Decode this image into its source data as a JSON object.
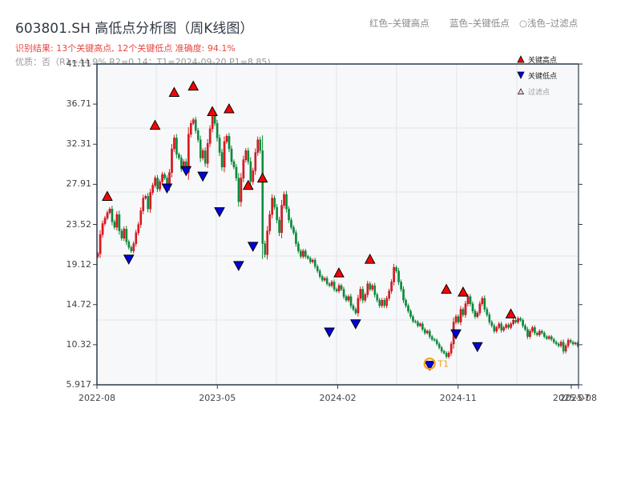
{
  "header": {
    "title": "603801.SH 高低点分析图（周K线图）",
    "result_line": "识别结果: 13个关键高点, 12个关键低点   准确度: 94.1%",
    "quality_line": "优质：否（R1=44.9%  R2=0.14；T1=2024-09-20 P1=8.85)"
  },
  "top_legend": {
    "red": "红色–关键高点",
    "blue": "蓝色–关键低点",
    "faded": "○浅色–过滤点"
  },
  "legend": {
    "high_label": "关键高点",
    "low_label": "关键低点",
    "filtered_label": "过滤点"
  },
  "colors": {
    "up": "#e31a1c",
    "down": "#0a8a3a",
    "high_marker": "#ff0000",
    "low_marker": "#0000e0",
    "t1_ring": "#f0a020",
    "plot_bg": "#f7f8fa",
    "grid": "#e2e4e8",
    "axis": "#2c3a4a"
  },
  "chart_data": {
    "type": "candlestick",
    "title": "603801.SH 高低点分析图（周K线图）",
    "xlabel": "",
    "ylabel": "",
    "ylim": [
      5.917,
      41.11
    ],
    "yticks": [
      "41.11",
      "36.71",
      "32.31",
      "27.91",
      "23.52",
      "19.12",
      "14.72",
      "10.32",
      "5.917"
    ],
    "xticks": [
      {
        "label": "2022-08",
        "pos": 0.0
      },
      {
        "label": "2023-05",
        "pos": 0.25
      },
      {
        "label": "2024-02",
        "pos": 0.5
      },
      {
        "label": "2024-11",
        "pos": 0.75
      },
      {
        "label": "2025-07",
        "pos": 0.985
      },
      {
        "label": "2025-08",
        "pos": 1.0
      }
    ],
    "grid": true,
    "legend_position": "upper right",
    "closes": [
      20.3,
      22.4,
      23.6,
      24.2,
      24.8,
      25.2,
      23.8,
      23.2,
      24.6,
      22.8,
      22.0,
      23.0,
      21.6,
      21.0,
      20.6,
      21.4,
      22.6,
      23.5,
      25.0,
      26.4,
      26.6,
      25.2,
      27.0,
      27.8,
      28.6,
      27.4,
      28.2,
      29.0,
      28.6,
      27.6,
      29.2,
      31.8,
      33.0,
      31.2,
      30.8,
      29.6,
      30.4,
      29.2,
      33.4,
      34.6,
      35.0,
      33.8,
      32.8,
      30.8,
      31.6,
      30.2,
      32.4,
      34.0,
      35.6,
      34.6,
      33.0,
      31.4,
      29.8,
      32.6,
      33.2,
      31.8,
      30.4,
      29.8,
      28.6,
      26.0,
      28.6,
      30.6,
      31.6,
      30.4,
      28.2,
      29.4,
      31.4,
      32.8,
      31.6,
      21.4,
      20.2,
      22.8,
      24.6,
      26.4,
      25.4,
      24.0,
      22.6,
      25.6,
      26.8,
      25.2,
      24.0,
      23.2,
      22.6,
      21.4,
      20.6,
      20.0,
      20.6,
      20.0,
      19.8,
      19.4,
      19.6,
      18.9,
      18.4,
      17.8,
      17.4,
      17.6,
      17.0,
      16.8,
      17.2,
      16.4,
      16.2,
      16.8,
      16.4,
      15.6,
      15.2,
      15.6,
      14.6,
      14.2,
      13.8,
      15.4,
      16.4,
      15.2,
      15.8,
      17.0,
      16.4,
      16.8,
      15.8,
      15.2,
      14.6,
      15.2,
      14.6,
      15.4,
      16.2,
      17.2,
      18.8,
      18.4,
      17.2,
      16.4,
      15.2,
      14.6,
      14.0,
      13.4,
      12.9,
      12.8,
      12.4,
      12.6,
      12.0,
      11.6,
      11.8,
      11.2,
      10.9,
      10.8,
      10.4,
      10.0,
      9.6,
      9.4,
      9.0,
      9.4,
      10.4,
      12.8,
      13.4,
      12.8,
      14.2,
      13.6,
      14.8,
      15.6,
      14.8,
      14.0,
      13.4,
      13.8,
      14.8,
      15.4,
      14.2,
      13.6,
      12.8,
      12.4,
      11.8,
      12.2,
      12.6,
      11.9,
      12.2,
      12.5,
      12.2,
      12.6,
      13.0,
      12.8,
      13.2,
      13.0,
      12.4,
      12.0,
      11.2,
      11.8,
      12.2,
      11.6,
      11.4,
      11.8,
      11.6,
      11.2,
      11.0,
      11.2,
      10.9,
      10.6,
      10.4,
      10.2,
      10.6,
      9.6,
      10.2,
      10.8,
      10.6,
      10.4,
      10.5,
      10.2
    ],
    "key_highs": [
      {
        "i": 4,
        "price": 25.8
      },
      {
        "i": 24,
        "price": 33.6
      },
      {
        "i": 32,
        "price": 37.2
      },
      {
        "i": 40,
        "price": 37.9
      },
      {
        "i": 48,
        "price": 35.1
      },
      {
        "i": 55,
        "price": 35.4
      },
      {
        "i": 63,
        "price": 27.0
      },
      {
        "i": 69,
        "price": 27.8
      },
      {
        "i": 101,
        "price": 17.4
      },
      {
        "i": 114,
        "price": 18.9
      },
      {
        "i": 146,
        "price": 15.6
      },
      {
        "i": 153,
        "price": 15.3
      },
      {
        "i": 173,
        "price": 12.9
      }
    ],
    "key_lows": [
      {
        "i": 13,
        "price": 20.5
      },
      {
        "i": 29,
        "price": 28.3
      },
      {
        "i": 37,
        "price": 30.2
      },
      {
        "i": 44,
        "price": 29.6
      },
      {
        "i": 51,
        "price": 25.7
      },
      {
        "i": 59,
        "price": 19.8
      },
      {
        "i": 65,
        "price": 21.9
      },
      {
        "i": 97,
        "price": 12.5
      },
      {
        "i": 108,
        "price": 13.4
      },
      {
        "i": 139,
        "price": 8.85
      },
      {
        "i": 150,
        "price": 12.3
      },
      {
        "i": 159,
        "price": 10.9
      }
    ],
    "annotation": {
      "label": "T1",
      "date": "2024-09-20",
      "price": 8.85,
      "i": 139
    }
  }
}
